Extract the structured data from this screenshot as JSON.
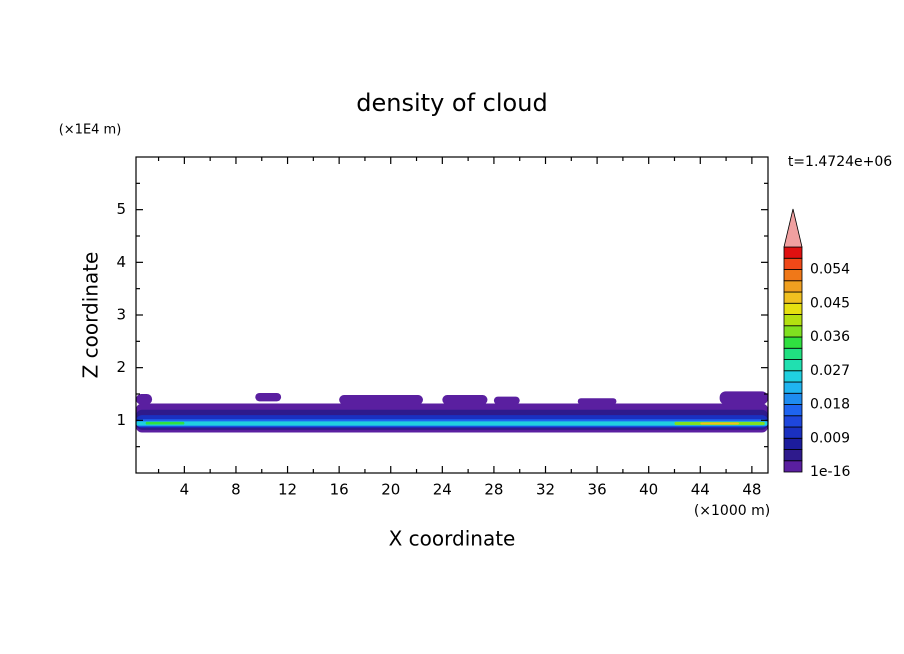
{
  "chart_data": {
    "type": "contour",
    "title": "density of cloud",
    "x_label": "X coordinate",
    "y_label": "Z coordinate",
    "x_unit": "(×1000 m)",
    "y_unit": "(×1E4 m)",
    "time_label": "t=1.4724e+06",
    "xlim": [
      0.25,
      49.25
    ],
    "ylim": [
      0,
      6
    ],
    "xticks": [
      4,
      8,
      12,
      16,
      20,
      24,
      28,
      32,
      36,
      40,
      44,
      48
    ],
    "xminorticks": [
      2,
      6,
      10,
      14,
      18,
      22,
      26,
      30,
      34,
      38,
      42,
      46
    ],
    "yticks": [
      1,
      2,
      3,
      4,
      5
    ],
    "yminorticks": [
      0.5,
      1.5,
      2.5,
      3.5,
      4.5,
      5.5
    ],
    "colorbar": {
      "levels": [
        1e-16,
        0.003,
        0.006,
        0.009,
        0.012,
        0.015,
        0.018,
        0.021,
        0.024,
        0.027,
        0.03,
        0.033,
        0.036,
        0.039,
        0.042,
        0.045,
        0.048,
        0.051,
        0.054,
        0.057,
        0.06
      ],
      "colors": [
        "#5a1fa0",
        "#2e1a8c",
        "#1c1c9c",
        "#1a30c0",
        "#1e46dc",
        "#1e64f0",
        "#1e8cf0",
        "#20b4f0",
        "#20d0e0",
        "#20e0b0",
        "#20e080",
        "#30e040",
        "#80e020",
        "#b4e010",
        "#e6e010",
        "#f0c020",
        "#f0a020",
        "#f07818",
        "#f04818",
        "#e01010",
        "#f0a0a0"
      ]
    },
    "layers": [
      {
        "level": 1e-16,
        "x": [
          0.25,
          49.25
        ],
        "z": [
          0.77,
          1.32
        ]
      },
      {
        "level": 1e-16,
        "x": [
          0.25,
          1.5
        ],
        "z": [
          1.3,
          1.5
        ]
      },
      {
        "level": 1e-16,
        "x": [
          9.5,
          11.5
        ],
        "z": [
          1.36,
          1.52
        ]
      },
      {
        "level": 1e-16,
        "x": [
          16,
          22.5
        ],
        "z": [
          1.3,
          1.48
        ]
      },
      {
        "level": 1e-16,
        "x": [
          24,
          27.5
        ],
        "z": [
          1.3,
          1.48
        ]
      },
      {
        "level": 1e-16,
        "x": [
          28,
          30
        ],
        "z": [
          1.3,
          1.45
        ]
      },
      {
        "level": 1e-16,
        "x": [
          34.5,
          37.5
        ],
        "z": [
          1.3,
          1.42
        ]
      },
      {
        "level": 1e-16,
        "x": [
          45.5,
          49.25
        ],
        "z": [
          1.3,
          1.55
        ]
      },
      {
        "level": 0.003,
        "x": [
          0.25,
          49.25
        ],
        "z": [
          0.82,
          1.2
        ]
      },
      {
        "level": 0.009,
        "x": [
          0.25,
          49.25
        ],
        "z": [
          0.86,
          1.1
        ]
      },
      {
        "level": 0.015,
        "x": [
          0.25,
          49.25
        ],
        "z": [
          0.88,
          1.02
        ]
      },
      {
        "level": 0.024,
        "x": [
          0.25,
          49.25
        ],
        "z": [
          0.9,
          0.98
        ]
      },
      {
        "level": 0.033,
        "x": [
          1,
          4
        ],
        "z": [
          0.92,
          0.97
        ]
      },
      {
        "level": 0.036,
        "x": [
          42,
          49
        ],
        "z": [
          0.91,
          0.97
        ]
      },
      {
        "level": 0.045,
        "x": [
          44,
          47
        ],
        "z": [
          0.92,
          0.96
        ]
      }
    ]
  }
}
